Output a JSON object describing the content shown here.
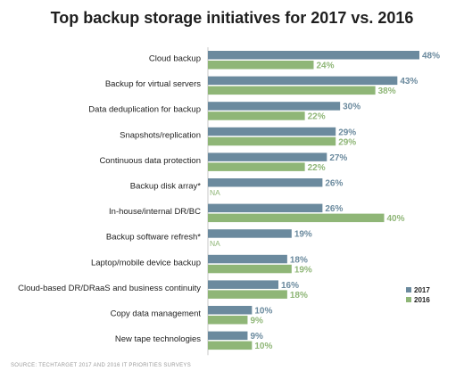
{
  "chart_data": {
    "type": "bar",
    "orientation": "horizontal",
    "title": "Top backup storage initiatives for 2017 vs. 2016",
    "source": "SOURCE: TECHTARGET 2017 AND 2016 IT PRIORITIES SURVEYS",
    "categories": [
      "Cloud backup",
      "Backup for virtual servers",
      "Data deduplication for backup",
      "Snapshots/replication",
      "Continuous data protection",
      "Backup disk array*",
      "In-house/internal DR/BC",
      "Backup software refresh*",
      "Laptop/mobile device backup",
      "Cloud-based DR/DRaaS and business continuity",
      "Copy data management",
      "New tape technologies"
    ],
    "series": [
      {
        "name": "2017",
        "color": "#6b8a9e",
        "values": [
          48,
          43,
          30,
          29,
          27,
          26,
          26,
          19,
          18,
          16,
          10,
          9
        ],
        "labels": [
          "48%",
          "43%",
          "30%",
          "29%",
          "27%",
          "26%",
          "26%",
          "19%",
          "18%",
          "16%",
          "10%",
          "9%"
        ]
      },
      {
        "name": "2016",
        "color": "#8fb677",
        "values": [
          24,
          38,
          22,
          29,
          22,
          null,
          40,
          null,
          19,
          18,
          9,
          10
        ],
        "labels": [
          "24%",
          "38%",
          "22%",
          "29%",
          "22%",
          "NA",
          "40%",
          "NA",
          "19%",
          "18%",
          "9%",
          "10%"
        ]
      }
    ],
    "xlim": [
      0,
      48
    ],
    "grid": false,
    "legend_position": "bottom-right"
  }
}
